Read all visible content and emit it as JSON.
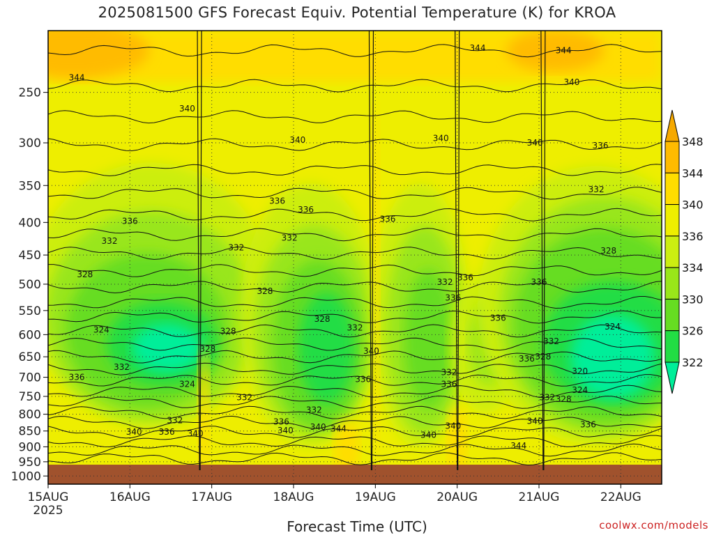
{
  "title": "2025081500 GFS Forecast Equiv. Potential Temperature (K) for KROA",
  "credit": "coolwx.com/models",
  "chart_data": {
    "type": "heatmap",
    "title": "2025081500 GFS Forecast Equiv. Potential Temperature (K) for KROA",
    "xlabel": "Forecast Time (UTC)",
    "ylabel": "",
    "x_ticks": [
      "15AUG",
      "16AUG",
      "17AUG",
      "18AUG",
      "19AUG",
      "20AUG",
      "21AUG",
      "22AUG"
    ],
    "x_tick_sublabel": "2025",
    "xlim_days_from_15AUG00Z": [
      0,
      7.5
    ],
    "y_ticks": [
      250,
      300,
      350,
      400,
      450,
      500,
      550,
      600,
      650,
      700,
      750,
      800,
      850,
      900,
      950,
      1000
    ],
    "ylim_hPa": [
      200,
      1030
    ],
    "y_scale": "log (pressure, decreasing upward)",
    "surface_below_hPa": 960,
    "colorbar_levels": [
      322,
      326,
      330,
      334,
      336,
      340,
      344,
      348
    ],
    "colorbar_colors": [
      "#00ee99",
      "#22dd44",
      "#66dd22",
      "#99e61a",
      "#ccee11",
      "#eeee00",
      "#ffdd00",
      "#ffbb00",
      "#f6a900"
    ],
    "surface_color": "#a0522d",
    "contour_labels": [
      {
        "v": "344",
        "d": 0.35,
        "p": 237
      },
      {
        "v": "344",
        "d": 5.25,
        "p": 213
      },
      {
        "v": "344",
        "d": 6.3,
        "p": 215
      },
      {
        "v": "340",
        "d": 1.7,
        "p": 265
      },
      {
        "v": "340",
        "d": 6.4,
        "p": 241
      },
      {
        "v": "340",
        "d": 3.05,
        "p": 297
      },
      {
        "v": "340",
        "d": 4.8,
        "p": 295
      },
      {
        "v": "340",
        "d": 5.95,
        "p": 300
      },
      {
        "v": "336",
        "d": 6.75,
        "p": 303
      },
      {
        "v": "336",
        "d": 1.0,
        "p": 398
      },
      {
        "v": "336",
        "d": 2.8,
        "p": 370
      },
      {
        "v": "336",
        "d": 3.15,
        "p": 382
      },
      {
        "v": "336",
        "d": 4.15,
        "p": 395
      },
      {
        "v": "332",
        "d": 0.75,
        "p": 428
      },
      {
        "v": "332",
        "d": 2.3,
        "p": 438
      },
      {
        "v": "332",
        "d": 2.95,
        "p": 423
      },
      {
        "v": "332",
        "d": 6.7,
        "p": 355
      },
      {
        "v": "328",
        "d": 0.45,
        "p": 483
      },
      {
        "v": "328",
        "d": 6.85,
        "p": 443
      },
      {
        "v": "336",
        "d": 5.1,
        "p": 488
      },
      {
        "v": "336",
        "d": 6.0,
        "p": 496
      },
      {
        "v": "332",
        "d": 4.85,
        "p": 496
      },
      {
        "v": "336",
        "d": 4.95,
        "p": 525
      },
      {
        "v": "328",
        "d": 2.65,
        "p": 513
      },
      {
        "v": "328",
        "d": 3.35,
        "p": 567
      },
      {
        "v": "336",
        "d": 5.5,
        "p": 565
      },
      {
        "v": "324",
        "d": 0.65,
        "p": 590
      },
      {
        "v": "328",
        "d": 2.2,
        "p": 593
      },
      {
        "v": "332",
        "d": 3.75,
        "p": 585
      },
      {
        "v": "324",
        "d": 6.9,
        "p": 583
      },
      {
        "v": "332",
        "d": 6.15,
        "p": 615
      },
      {
        "v": "328",
        "d": 1.95,
        "p": 632
      },
      {
        "v": "340",
        "d": 3.95,
        "p": 637
      },
      {
        "v": "336",
        "d": 5.85,
        "p": 655
      },
      {
        "v": "328",
        "d": 6.05,
        "p": 650
      },
      {
        "v": "332",
        "d": 0.9,
        "p": 675
      },
      {
        "v": "332",
        "d": 4.9,
        "p": 688
      },
      {
        "v": "320",
        "d": 6.5,
        "p": 685
      },
      {
        "v": "336",
        "d": 0.35,
        "p": 700
      },
      {
        "v": "324",
        "d": 1.7,
        "p": 718
      },
      {
        "v": "336",
        "d": 3.85,
        "p": 705
      },
      {
        "v": "336",
        "d": 4.9,
        "p": 718
      },
      {
        "v": "324",
        "d": 6.5,
        "p": 733
      },
      {
        "v": "332",
        "d": 2.4,
        "p": 753
      },
      {
        "v": "332",
        "d": 6.1,
        "p": 753
      },
      {
        "v": "328",
        "d": 6.3,
        "p": 758
      },
      {
        "v": "332",
        "d": 3.25,
        "p": 788
      },
      {
        "v": "332",
        "d": 1.55,
        "p": 818
      },
      {
        "v": "336",
        "d": 2.85,
        "p": 822
      },
      {
        "v": "336",
        "d": 6.6,
        "p": 830
      },
      {
        "v": "340",
        "d": 5.95,
        "p": 820
      },
      {
        "v": "340",
        "d": 1.05,
        "p": 853
      },
      {
        "v": "336",
        "d": 1.45,
        "p": 853
      },
      {
        "v": "340",
        "d": 1.8,
        "p": 858
      },
      {
        "v": "340",
        "d": 2.9,
        "p": 848
      },
      {
        "v": "340",
        "d": 3.3,
        "p": 838
      },
      {
        "v": "344",
        "d": 3.55,
        "p": 843
      },
      {
        "v": "340",
        "d": 4.95,
        "p": 835
      },
      {
        "v": "340",
        "d": 4.65,
        "p": 863
      },
      {
        "v": "344",
        "d": 5.75,
        "p": 897
      }
    ]
  }
}
